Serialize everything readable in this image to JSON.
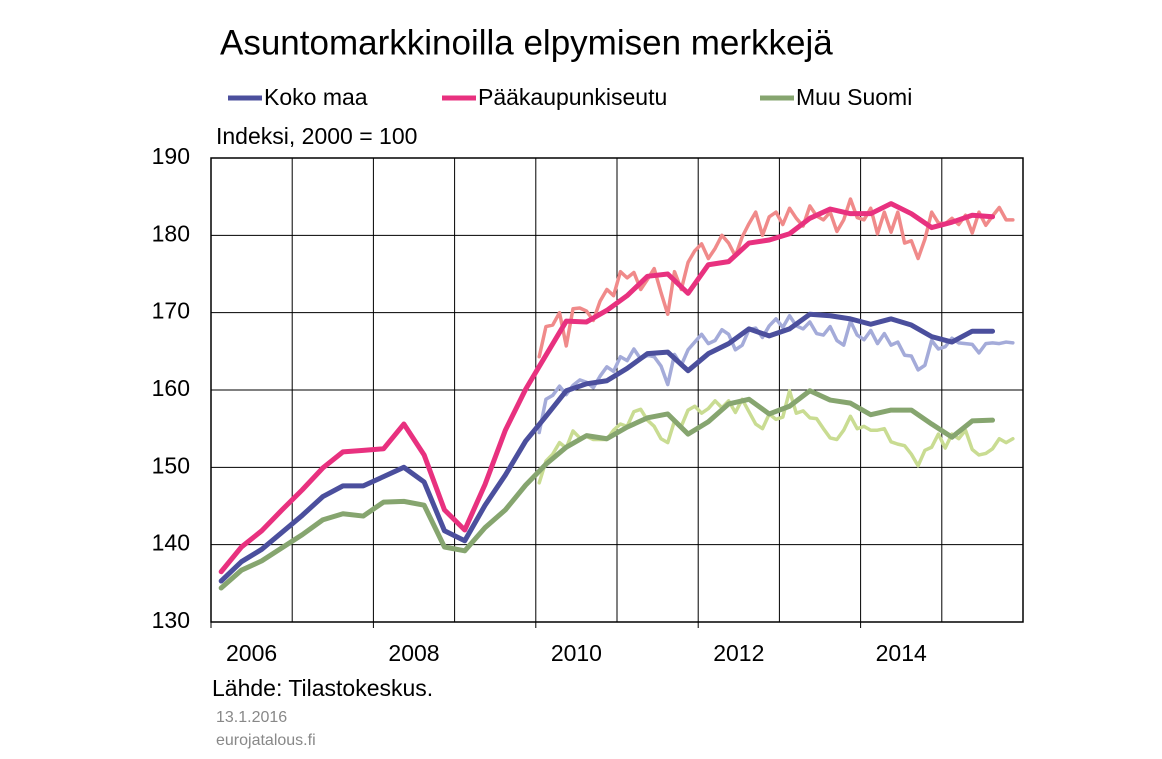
{
  "chart_data": {
    "type": "line",
    "title": "Asuntomarkkinoilla elpymisen merkkejä",
    "ylabel": "Indeksi, 2000 = 100",
    "source": "Lähde: Tilastokeskus.",
    "date": "13.1.2016",
    "site": "eurojatalous.fi",
    "xlim": [
      2006,
      2016
    ],
    "xticks": [
      2006,
      2008,
      2010,
      2012,
      2014
    ],
    "ylim": [
      130,
      190
    ],
    "yticks": [
      130,
      140,
      150,
      160,
      170,
      180,
      190
    ],
    "grid": true,
    "series": [
      {
        "color": "#a4abd9",
        "x": [
          2010.042,
          2010.125,
          2010.208,
          2010.292,
          2010.375,
          2010.458,
          2010.542,
          2010.625,
          2010.708,
          2010.792,
          2010.875,
          2010.958,
          2011.042,
          2011.125,
          2011.208,
          2011.292,
          2011.375,
          2011.458,
          2011.542,
          2011.625,
          2011.708,
          2011.792,
          2011.875,
          2011.958,
          2012.042,
          2012.125,
          2012.208,
          2012.292,
          2012.375,
          2012.458,
          2012.542,
          2012.625,
          2012.708,
          2012.792,
          2012.875,
          2012.958,
          2013.042,
          2013.125,
          2013.208,
          2013.292,
          2013.375,
          2013.458,
          2013.542,
          2013.625,
          2013.708,
          2013.792,
          2013.875,
          2013.958,
          2014.042,
          2014.125,
          2014.208,
          2014.292,
          2014.375,
          2014.458,
          2014.542,
          2014.625,
          2014.708,
          2014.792,
          2014.875,
          2014.958,
          2015.042,
          2015.125,
          2015.208,
          2015.292,
          2015.375,
          2015.458,
          2015.542,
          2015.625,
          2015.708,
          2015.792,
          2015.875
        ],
        "values": [
          154.5,
          158.8,
          159.3,
          160.5,
          159.4,
          160.6,
          161.3,
          161.0,
          160.3,
          161.8,
          163.0,
          162.4,
          164.3,
          163.8,
          165.3,
          164.0,
          164.5,
          164.3,
          163.1,
          160.7,
          164.6,
          163.2,
          165.2,
          166.2,
          167.2,
          166.0,
          166.4,
          167.8,
          167.2,
          165.2,
          165.8,
          167.8,
          168.0,
          166.8,
          168.3,
          169.2,
          168.1,
          169.6,
          168.3,
          167.9,
          168.8,
          167.3,
          167.1,
          168.2,
          166.4,
          165.8,
          168.9,
          167.1,
          166.5,
          167.7,
          166.0,
          167.3,
          165.8,
          166.2,
          164.5,
          164.4,
          162.6,
          163.2,
          166.4,
          165.3,
          165.6,
          166.7,
          166.1,
          166.0,
          165.9,
          164.8,
          166.0,
          166.1,
          166.0,
          166.2,
          166.1
        ]
      },
      {
        "color": "#f08a8a",
        "x": [
          2010.042,
          2010.125,
          2010.208,
          2010.292,
          2010.375,
          2010.458,
          2010.542,
          2010.625,
          2010.708,
          2010.792,
          2010.875,
          2010.958,
          2011.042,
          2011.125,
          2011.208,
          2011.292,
          2011.375,
          2011.458,
          2011.542,
          2011.625,
          2011.708,
          2011.792,
          2011.875,
          2011.958,
          2012.042,
          2012.125,
          2012.208,
          2012.292,
          2012.375,
          2012.458,
          2012.542,
          2012.625,
          2012.708,
          2012.792,
          2012.875,
          2012.958,
          2013.042,
          2013.125,
          2013.208,
          2013.292,
          2013.375,
          2013.458,
          2013.542,
          2013.625,
          2013.708,
          2013.792,
          2013.875,
          2013.958,
          2014.042,
          2014.125,
          2014.208,
          2014.292,
          2014.375,
          2014.458,
          2014.542,
          2014.625,
          2014.708,
          2014.792,
          2014.875,
          2014.958,
          2015.042,
          2015.125,
          2015.208,
          2015.292,
          2015.375,
          2015.458,
          2015.542,
          2015.625,
          2015.708,
          2015.792,
          2015.875
        ],
        "values": [
          164.3,
          168.2,
          168.4,
          170.0,
          165.7,
          170.5,
          170.6,
          170.2,
          169.0,
          171.5,
          173.0,
          172.2,
          175.3,
          174.5,
          175.2,
          173.0,
          174.3,
          175.7,
          172.6,
          169.8,
          175.3,
          173.0,
          176.5,
          178.0,
          178.9,
          177.0,
          178.3,
          180.0,
          179.0,
          177.3,
          179.8,
          181.5,
          183.0,
          180.0,
          182.4,
          183.0,
          181.4,
          183.5,
          182.2,
          181.2,
          183.8,
          182.5,
          182.0,
          183.0,
          180.5,
          182.0,
          184.7,
          182.3,
          182.0,
          183.5,
          180.2,
          183.0,
          180.4,
          183.0,
          179.0,
          179.3,
          177.0,
          179.5,
          183.0,
          181.6,
          181.5,
          182.2,
          181.4,
          182.6,
          180.3,
          183.0,
          181.3,
          182.5,
          183.6,
          182.0,
          182.0
        ]
      },
      {
        "color": "#c9dc92",
        "x": [
          2010.042,
          2010.125,
          2010.208,
          2010.292,
          2010.375,
          2010.458,
          2010.542,
          2010.625,
          2010.708,
          2010.792,
          2010.875,
          2010.958,
          2011.042,
          2011.125,
          2011.208,
          2011.292,
          2011.375,
          2011.458,
          2011.542,
          2011.625,
          2011.708,
          2011.792,
          2011.875,
          2011.958,
          2012.042,
          2012.125,
          2012.208,
          2012.292,
          2012.375,
          2012.458,
          2012.542,
          2012.625,
          2012.708,
          2012.792,
          2012.875,
          2012.958,
          2013.042,
          2013.125,
          2013.208,
          2013.292,
          2013.375,
          2013.458,
          2013.542,
          2013.625,
          2013.708,
          2013.792,
          2013.875,
          2013.958,
          2014.042,
          2014.125,
          2014.208,
          2014.292,
          2014.375,
          2014.458,
          2014.542,
          2014.625,
          2014.708,
          2014.792,
          2014.875,
          2014.958,
          2015.042,
          2015.125,
          2015.208,
          2015.292,
          2015.375,
          2015.458,
          2015.542,
          2015.625,
          2015.708,
          2015.792,
          2015.875
        ],
        "values": [
          148.0,
          150.8,
          151.7,
          153.2,
          152.5,
          154.7,
          153.8,
          154.0,
          153.6,
          153.6,
          153.6,
          154.8,
          155.6,
          155.3,
          157.2,
          157.5,
          156.1,
          155.3,
          153.7,
          153.2,
          156.0,
          155.3,
          157.4,
          157.9,
          157.0,
          157.6,
          158.6,
          157.7,
          158.6,
          157.1,
          158.8,
          157.2,
          155.6,
          155.0,
          156.9,
          156.2,
          156.5,
          159.9,
          157.0,
          157.3,
          156.4,
          156.3,
          155.0,
          153.8,
          153.6,
          154.8,
          156.6,
          155.0,
          155.3,
          154.8,
          154.8,
          155.0,
          153.3,
          153.0,
          152.8,
          151.7,
          150.2,
          152.2,
          152.6,
          154.3,
          152.5,
          154.3,
          153.7,
          154.8,
          152.3,
          151.6,
          151.8,
          152.4,
          153.7,
          153.2,
          153.7
        ]
      },
      {
        "name": "Koko maa",
        "color": "#4b4f9d",
        "x": [
          2006.125,
          2006.375,
          2006.625,
          2006.875,
          2007.125,
          2007.375,
          2007.625,
          2007.875,
          2008.125,
          2008.375,
          2008.625,
          2008.875,
          2009.125,
          2009.375,
          2009.625,
          2009.875,
          2010.125,
          2010.375,
          2010.625,
          2010.875,
          2011.125,
          2011.375,
          2011.625,
          2011.875,
          2012.125,
          2012.375,
          2012.625,
          2012.875,
          2013.125,
          2013.375,
          2013.625,
          2013.875,
          2014.125,
          2014.375,
          2014.625,
          2014.875,
          2015.125,
          2015.375,
          2015.625
        ],
        "values": [
          135.3,
          137.8,
          139.4,
          141.6,
          143.8,
          146.2,
          147.6,
          147.6,
          148.8,
          150.0,
          148.1,
          141.8,
          140.5,
          145.1,
          149.0,
          153.4,
          156.6,
          159.9,
          160.8,
          161.2,
          162.8,
          164.7,
          164.9,
          162.5,
          164.7,
          166.0,
          167.9,
          167.0,
          167.9,
          169.8,
          169.6,
          169.2,
          168.5,
          169.2,
          168.4,
          166.9,
          166.2,
          167.6,
          167.6
        ]
      },
      {
        "name": "Pääkaupunkiseutu",
        "color": "#e8317f",
        "x": [
          2006.125,
          2006.375,
          2006.625,
          2006.875,
          2007.125,
          2007.375,
          2007.625,
          2007.875,
          2008.125,
          2008.375,
          2008.625,
          2008.875,
          2009.125,
          2009.375,
          2009.625,
          2009.875,
          2010.125,
          2010.375,
          2010.625,
          2010.875,
          2011.125,
          2011.375,
          2011.625,
          2011.875,
          2012.125,
          2012.375,
          2012.625,
          2012.875,
          2013.125,
          2013.375,
          2013.625,
          2013.875,
          2014.125,
          2014.375,
          2014.625,
          2014.875,
          2015.125,
          2015.375,
          2015.625
        ],
        "values": [
          136.5,
          139.7,
          141.8,
          144.5,
          147.1,
          149.9,
          152.0,
          152.2,
          152.4,
          155.6,
          151.6,
          144.5,
          141.9,
          147.8,
          154.8,
          160.1,
          164.5,
          168.9,
          168.8,
          170.3,
          172.2,
          174.7,
          175.0,
          172.5,
          176.2,
          176.6,
          179.0,
          179.4,
          180.2,
          182.2,
          183.4,
          182.8,
          182.8,
          184.1,
          182.8,
          181.0,
          181.7,
          182.6,
          182.4
        ]
      },
      {
        "name": "Muu Suomi",
        "color": "#86a56f",
        "x": [
          2006.125,
          2006.375,
          2006.625,
          2006.875,
          2007.125,
          2007.375,
          2007.625,
          2007.875,
          2008.125,
          2008.375,
          2008.625,
          2008.875,
          2009.125,
          2009.375,
          2009.625,
          2009.875,
          2010.125,
          2010.375,
          2010.625,
          2010.875,
          2011.125,
          2011.375,
          2011.625,
          2011.875,
          2012.125,
          2012.375,
          2012.625,
          2012.875,
          2013.125,
          2013.375,
          2013.625,
          2013.875,
          2014.125,
          2014.375,
          2014.625,
          2014.875,
          2015.125,
          2015.375,
          2015.625
        ],
        "values": [
          134.4,
          136.7,
          137.9,
          139.6,
          141.3,
          143.2,
          144.0,
          143.7,
          145.5,
          145.6,
          145.1,
          139.7,
          139.2,
          142.2,
          144.5,
          147.7,
          150.4,
          152.6,
          154.1,
          153.7,
          155.2,
          156.4,
          156.9,
          154.3,
          155.9,
          158.2,
          158.8,
          156.9,
          157.9,
          159.9,
          158.7,
          158.3,
          156.8,
          157.4,
          157.4,
          155.6,
          153.9,
          156.0,
          156.1
        ]
      }
    ]
  }
}
